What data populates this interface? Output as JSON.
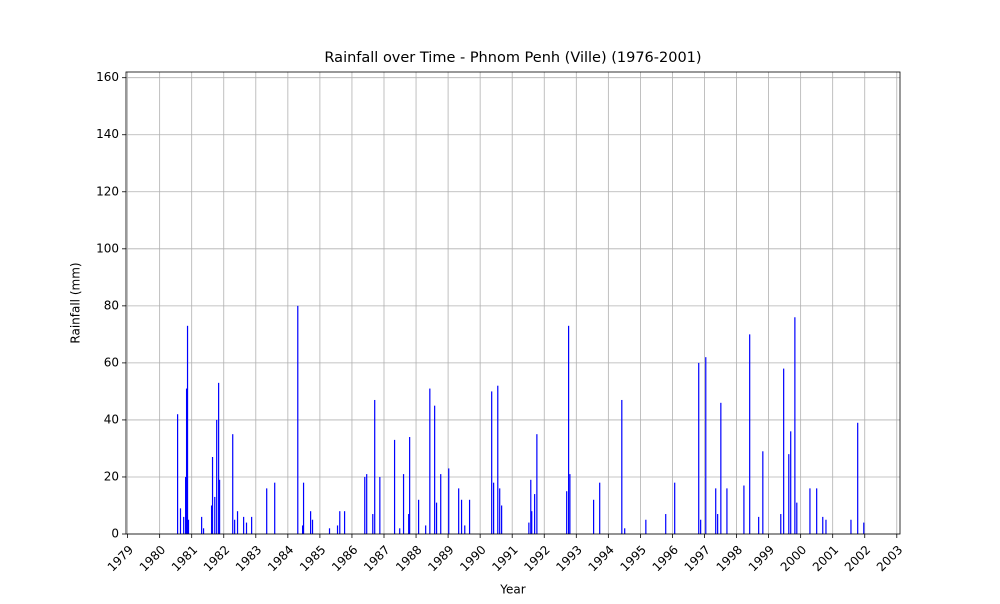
{
  "chart_data": {
    "type": "bar",
    "title": "Rainfall over Time - Phnom Penh (Ville) (1976-2001)",
    "xlabel": "Year",
    "ylabel": "Rainfall (mm)",
    "color": "#0000ff",
    "grid": true,
    "xlim": [
      1978.95,
      2003.1
    ],
    "ylim": [
      0,
      162
    ],
    "xticks": [
      1979,
      1980,
      1981,
      1982,
      1983,
      1984,
      1985,
      1986,
      1987,
      1988,
      1989,
      1990,
      1991,
      1992,
      1993,
      1994,
      1995,
      1996,
      1997,
      1998,
      1999,
      2000,
      2001,
      2002,
      2003
    ],
    "yticks": [
      0,
      20,
      40,
      60,
      80,
      100,
      120,
      140,
      160
    ],
    "x": [
      1980.56,
      1980.65,
      1980.75,
      1980.81,
      1980.84,
      1980.87,
      1980.9,
      1981.31,
      1981.37,
      1981.62,
      1981.65,
      1981.72,
      1981.78,
      1981.84,
      1981.87,
      1982.28,
      1982.34,
      1982.43,
      1982.62,
      1982.71,
      1982.87,
      1983.34,
      1983.59,
      1984.31,
      1984.46,
      1984.49,
      1984.71,
      1984.77,
      1985.3,
      1985.55,
      1985.62,
      1985.77,
      1986.4,
      1986.46,
      1986.65,
      1986.71,
      1986.87,
      1987.33,
      1987.49,
      1987.61,
      1987.77,
      1987.8,
      1988.08,
      1988.3,
      1988.43,
      1988.58,
      1988.64,
      1988.77,
      1989.02,
      1989.33,
      1989.42,
      1989.52,
      1989.67,
      1990.36,
      1990.42,
      1990.55,
      1990.61,
      1990.67,
      1991.52,
      1991.58,
      1991.61,
      1991.7,
      1991.77,
      1992.7,
      1992.76,
      1992.8,
      1993.54,
      1993.73,
      1994.42,
      1994.51,
      1995.17,
      1995.79,
      1996.07,
      1996.82,
      1996.88,
      1997.04,
      1997.35,
      1997.41,
      1997.51,
      1997.7,
      1998.23,
      1998.41,
      1998.69,
      1998.82,
      1999.38,
      1999.47,
      1999.63,
      1999.69,
      1999.82,
      1999.88,
      2000.29,
      2000.5,
      2000.69,
      2000.79,
      2001.57,
      2001.78,
      2001.97
    ],
    "values": [
      42,
      9,
      6,
      20,
      51,
      73,
      5,
      6,
      2,
      10,
      27,
      13,
      40,
      53,
      19,
      35,
      5,
      8,
      6,
      4,
      6,
      16,
      18,
      80,
      3,
      18,
      8,
      5,
      2,
      3,
      8,
      8,
      20,
      21,
      7,
      47,
      20,
      33,
      2,
      21,
      7,
      34,
      12,
      3,
      51,
      45,
      11,
      21,
      23,
      16,
      12,
      3,
      12,
      50,
      18,
      52,
      16,
      10,
      4,
      19,
      8,
      14,
      35,
      15,
      73,
      21,
      12,
      18,
      47,
      2,
      5,
      7,
      18,
      60,
      5,
      62,
      16,
      7,
      46,
      16,
      17,
      70,
      6,
      29,
      7,
      58,
      28,
      36,
      76,
      11,
      16,
      16,
      6,
      5,
      5,
      39,
      4
    ]
  }
}
